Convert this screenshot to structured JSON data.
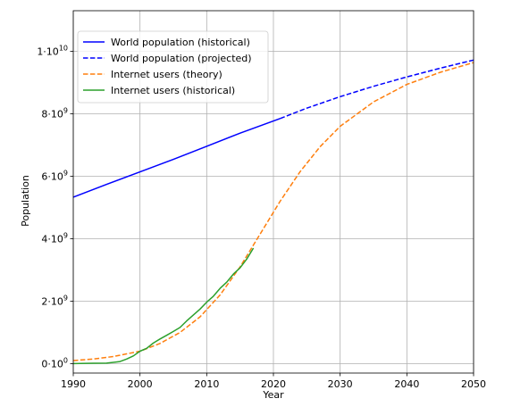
{
  "chart_data": {
    "type": "line",
    "xlabel": "Year",
    "ylabel": "Population",
    "xlim": [
      1990,
      2050
    ],
    "ylim": [
      -300000000,
      11300000000
    ],
    "grid": true,
    "legend_position": "top-left",
    "x_ticks": [
      {
        "value": 1990,
        "label": "1990"
      },
      {
        "value": 2000,
        "label": "2000"
      },
      {
        "value": 2010,
        "label": "2010"
      },
      {
        "value": 2020,
        "label": "2020"
      },
      {
        "value": 2030,
        "label": "2030"
      },
      {
        "value": 2040,
        "label": "2040"
      },
      {
        "value": 2050,
        "label": "2050"
      }
    ],
    "y_ticks": [
      {
        "value": 0,
        "mantissa": "0·10",
        "exp": "0"
      },
      {
        "value": 2000000000,
        "mantissa": "2·10",
        "exp": "9"
      },
      {
        "value": 4000000000,
        "mantissa": "4·10",
        "exp": "9"
      },
      {
        "value": 6000000000,
        "mantissa": "6·10",
        "exp": "9"
      },
      {
        "value": 8000000000,
        "mantissa": "8·10",
        "exp": "9"
      },
      {
        "value": 10000000000,
        "mantissa": "1·10",
        "exp": "10"
      }
    ],
    "series": [
      {
        "name": "World population (historical)",
        "color": "#0000ff",
        "style": "solid",
        "x": [
          1990,
          1995,
          2000,
          2005,
          2010,
          2015,
          2021
        ],
        "y": [
          5330000000,
          5740000000,
          6140000000,
          6540000000,
          6960000000,
          7380000000,
          7850000000
        ]
      },
      {
        "name": "World population (projected)",
        "color": "#0000ff",
        "style": "dashed",
        "x": [
          2021,
          2025,
          2030,
          2035,
          2040,
          2045,
          2050
        ],
        "y": [
          7850000000,
          8180000000,
          8550000000,
          8880000000,
          9180000000,
          9460000000,
          9720000000
        ]
      },
      {
        "name": "Internet users (theory)",
        "color": "#ff7f0e",
        "style": "dashed",
        "x": [
          1990,
          1993,
          1996,
          2000,
          2003,
          2006,
          2009,
          2012,
          2015,
          2018,
          2021,
          2024,
          2027,
          2030,
          2035,
          2040,
          2045,
          2050
        ],
        "y": [
          100000000,
          150000000,
          230000000,
          400000000,
          650000000,
          1000000000,
          1500000000,
          2200000000,
          3100000000,
          4150000000,
          5200000000,
          6150000000,
          6950000000,
          7600000000,
          8380000000,
          8940000000,
          9330000000,
          9640000000
        ]
      },
      {
        "name": "Internet users (historical)",
        "color": "#2ca02c",
        "style": "solid",
        "x": [
          1990,
          1993,
          1995,
          1997,
          1998,
          1999,
          2000,
          2001,
          2002,
          2003,
          2004,
          2005,
          2006,
          2007,
          2008,
          2009,
          2010,
          2011,
          2012,
          2013,
          2014,
          2015,
          2016,
          2017
        ],
        "y": [
          3000000,
          14000000,
          16000000,
          70000000,
          150000000,
          250000000,
          400000000,
          490000000,
          660000000,
          790000000,
          910000000,
          1030000000,
          1160000000,
          1370000000,
          1560000000,
          1750000000,
          1970000000,
          2160000000,
          2410000000,
          2610000000,
          2870000000,
          3070000000,
          3350000000,
          3700000000
        ]
      }
    ]
  }
}
